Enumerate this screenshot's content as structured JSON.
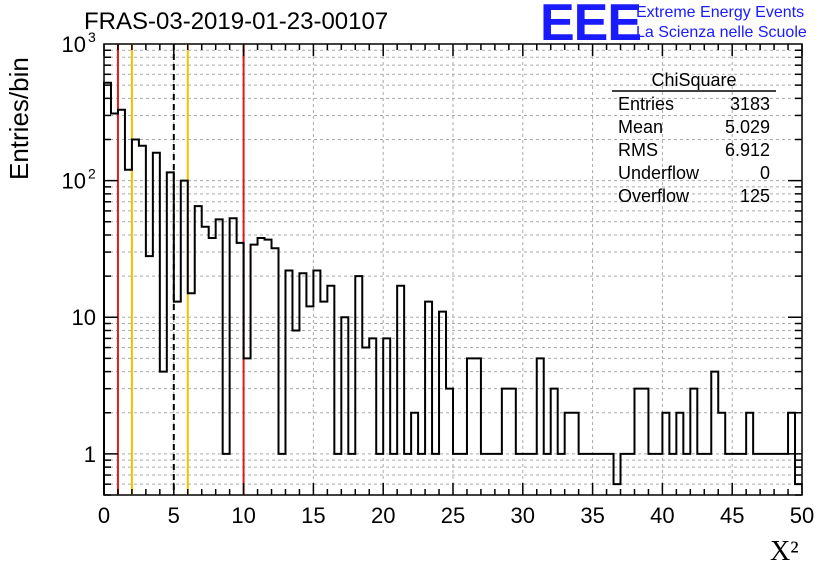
{
  "header": {
    "title": "FRAS-03-2019-01-23-00107",
    "logo_text": "EEE",
    "logo_line1": "Extreme Energy Events",
    "logo_line2": "La Scienza nelle Scuole"
  },
  "stats": {
    "title": "ChiSquare",
    "rows": [
      {
        "label": "Entries",
        "value": "3183"
      },
      {
        "label": "Mean",
        "value": "5.029"
      },
      {
        "label": "RMS",
        "value": "6.912"
      },
      {
        "label": "Underflow",
        "value": "0"
      },
      {
        "label": "Overflow",
        "value": "125"
      }
    ]
  },
  "chart_data": {
    "type": "histogram",
    "xlabel": "X²",
    "ylabel": "Entries/bin",
    "xlim": [
      0,
      50
    ],
    "ylim": [
      0.5,
      1000
    ],
    "yscale": "log",
    "grid": true,
    "bin_width": 0.5,
    "x_ticks": [
      "0",
      "5",
      "10",
      "15",
      "20",
      "25",
      "30",
      "35",
      "40",
      "45",
      "50"
    ],
    "y_ticks": [
      {
        "value": 1,
        "label": "1"
      },
      {
        "value": 10,
        "label": "10"
      },
      {
        "value": 100,
        "label": "10",
        "sup": "2"
      },
      {
        "value": 1000,
        "label": "10",
        "sup": "3"
      }
    ],
    "values": [
      520,
      310,
      330,
      120,
      200,
      180,
      28,
      160,
      4,
      115,
      13,
      100,
      15,
      65,
      46,
      38,
      52,
      1,
      53,
      35,
      5,
      34,
      38,
      37,
      32,
      1,
      22,
      8,
      21,
      12,
      22,
      13,
      17,
      1,
      10,
      1,
      20,
      6,
      7,
      1,
      7,
      1,
      17,
      1,
      2,
      1,
      13,
      1,
      11,
      3,
      1,
      1,
      5,
      5,
      1,
      1,
      1,
      3,
      3,
      1,
      1,
      1,
      5,
      1,
      3,
      1,
      2,
      2,
      1,
      1,
      1,
      1,
      1,
      0.6,
      1,
      1,
      3,
      3,
      1,
      1,
      2,
      1,
      2,
      1,
      3,
      1,
      1,
      4,
      2,
      1,
      1,
      1,
      2,
      1,
      1,
      1,
      1,
      1,
      2,
      0.6
    ],
    "vlines": [
      {
        "x": 1,
        "color": "#e41a1a",
        "style": "solid"
      },
      {
        "x": 2,
        "color": "#f5c000",
        "style": "solid"
      },
      {
        "x": 5,
        "color": "#000000",
        "style": "dashed"
      },
      {
        "x": 6,
        "color": "#f5c000",
        "style": "solid"
      },
      {
        "x": 10,
        "color": "#e41a1a",
        "style": "solid"
      }
    ]
  }
}
